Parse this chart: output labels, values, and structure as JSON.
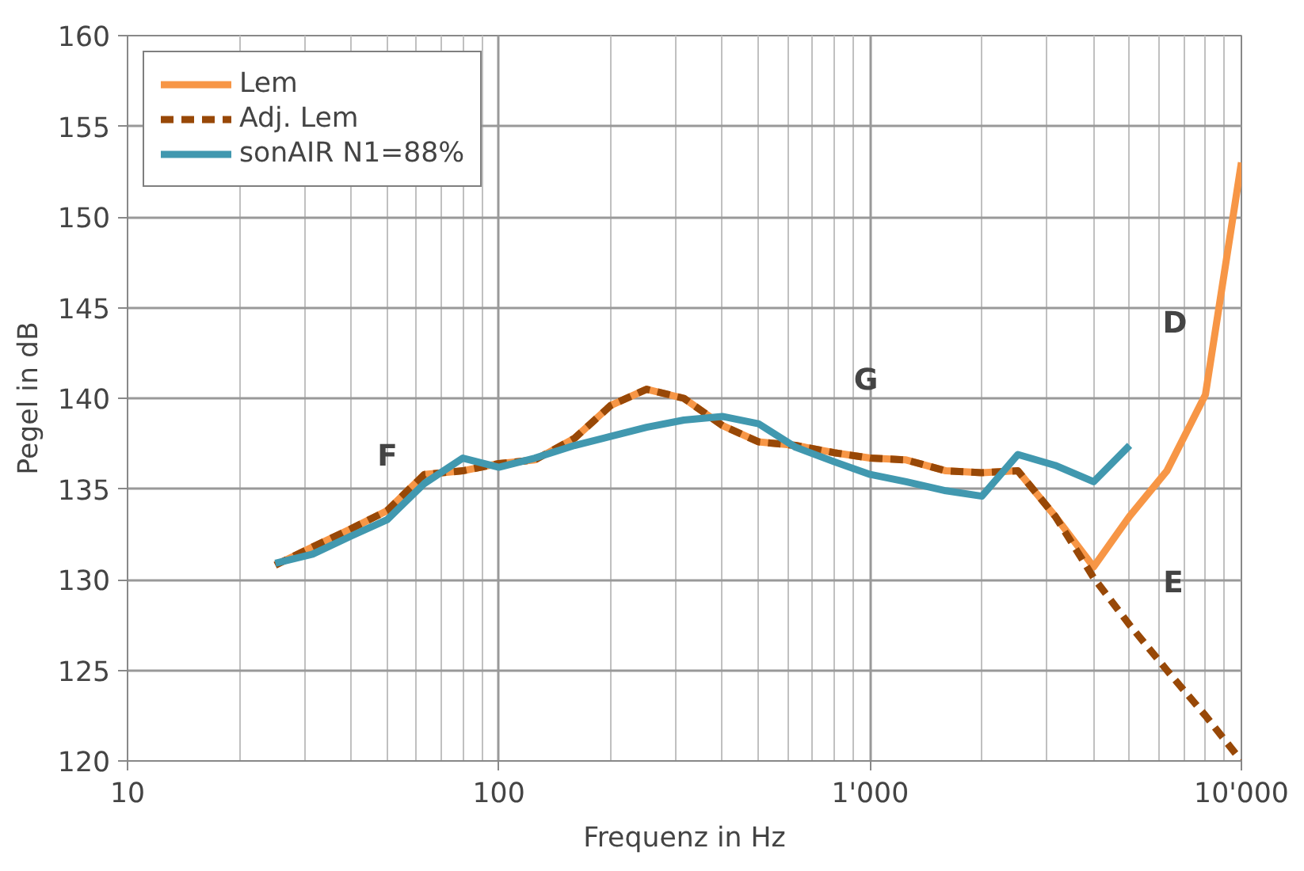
{
  "chart_data": {
    "type": "line",
    "xlabel": "Frequenz in Hz",
    "ylabel": "Pegel in dB",
    "log": "x",
    "x": [
      25,
      31.5,
      40,
      50,
      63,
      80,
      100,
      125,
      160,
      200,
      250,
      315,
      400,
      500,
      630,
      800,
      1000,
      1250,
      1600,
      2000,
      2500,
      3150,
      4000,
      5000,
      6300,
      8000,
      10000
    ],
    "series": [
      {
        "name": "Lem",
        "color": "#f79646",
        "line_style": "solid",
        "values": [
          130.8,
          131.8,
          132.8,
          133.8,
          135.8,
          136.0,
          136.4,
          136.6,
          137.8,
          139.6,
          140.5,
          140.0,
          138.5,
          137.6,
          137.4,
          137.0,
          136.7,
          136.6,
          136.0,
          135.9,
          136.0,
          133.5,
          130.7,
          133.5,
          136.0,
          140.2,
          153.0
        ]
      },
      {
        "name": "Adj. Lem",
        "color": "#984807",
        "line_style": "dashed",
        "values": [
          130.8,
          131.8,
          132.8,
          133.8,
          135.8,
          136.0,
          136.4,
          136.6,
          137.8,
          139.6,
          140.5,
          140.0,
          138.5,
          137.6,
          137.4,
          137.0,
          136.7,
          136.6,
          136.0,
          135.9,
          136.0,
          133.5,
          130.1,
          127.5,
          125.0,
          122.5,
          120.0
        ]
      },
      {
        "name": "sonAIR N1=88%",
        "color": "#4198af",
        "line_style": "solid",
        "values": [
          130.9,
          131.4,
          132.4,
          133.3,
          135.3,
          136.7,
          136.2,
          136.7,
          137.4,
          137.9,
          138.4,
          138.8,
          139.0,
          138.6,
          137.3,
          136.5,
          135.8,
          135.4,
          134.9,
          134.6,
          136.9,
          136.3,
          135.4,
          137.4,
          null,
          null,
          null
        ]
      }
    ],
    "xlim": [
      10,
      10000
    ],
    "xticks": [
      10,
      100,
      {
        "value": 1000,
        "label": "1'000"
      },
      {
        "value": 10000,
        "label": "10'000"
      }
    ],
    "ylim": [
      120,
      160
    ],
    "yticks": [
      120,
      125,
      130,
      135,
      140,
      145,
      150,
      155,
      160
    ],
    "grid": true,
    "legend": "top left",
    "annotations": [
      "F",
      "G",
      "D",
      "E"
    ]
  }
}
